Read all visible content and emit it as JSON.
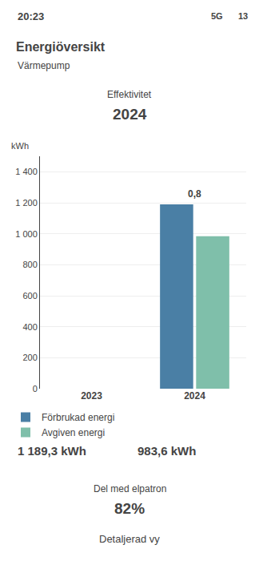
{
  "chart_data": {
    "type": "bar",
    "title": "Energiöversikt",
    "subtitle": "Värmepump",
    "ylabel": "kWh",
    "categories": [
      "2023",
      "2024"
    ],
    "series": [
      {
        "name": "Förbrukad energi",
        "color": "#4a7fa5",
        "values": [
          null,
          1189.3
        ],
        "value_labels": [
          null,
          "1 189,3 kWh"
        ]
      },
      {
        "name": "Avgiven energi",
        "color": "#7fbfaa",
        "values": [
          null,
          983.6
        ],
        "value_labels": [
          null,
          "983,6 kWh"
        ]
      }
    ],
    "ylim": [
      0,
      1500
    ],
    "yticks": [
      0,
      200,
      400,
      600,
      800,
      {
        "value": 1000,
        "label": "1 000"
      },
      {
        "value": 1200,
        "label": "1 200"
      },
      {
        "value": 1400,
        "label": "1 400"
      }
    ],
    "grid": true,
    "legend": "bottom",
    "annotations": [
      {
        "text": "0,8",
        "category": "2024"
      },
      {
        "text": "20:23"
      },
      {
        "text": "5G"
      },
      {
        "text": "13"
      },
      {
        "text": "Effektivitet"
      },
      {
        "text": "2024"
      },
      {
        "text": "Del med elpatron"
      },
      {
        "text": "82%"
      },
      {
        "text": "Detaljerad vy"
      }
    ]
  }
}
